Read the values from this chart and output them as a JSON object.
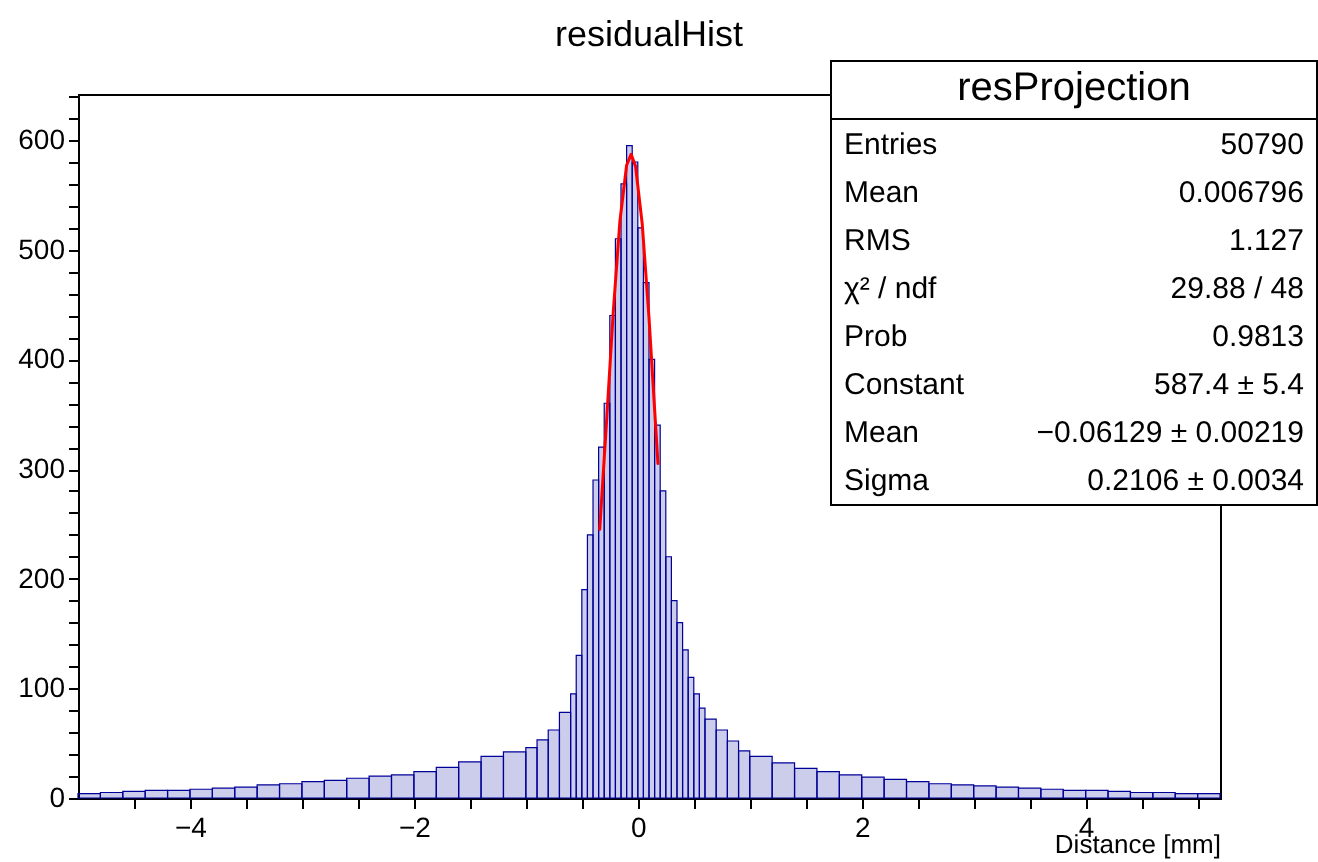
{
  "chart_data": {
    "type": "histogram",
    "title": "residualHist",
    "xlabel": "Distance [mm]",
    "color": "#000099",
    "bins": [
      -5,
      -4.8,
      -4.6,
      -4.4,
      -4.2,
      -4,
      -3.8,
      -3.6,
      -3.4,
      -3.2,
      -3,
      -2.8,
      -2.6,
      -2.4,
      -2.2,
      -2,
      -1.8,
      -1.6,
      -1.4,
      -1.2,
      -1,
      -0.9,
      -0.8,
      -0.7,
      -0.6,
      -0.55,
      -0.5,
      -0.45,
      -0.4,
      -0.35,
      -0.3,
      -0.25,
      -0.2,
      -0.15,
      -0.1,
      -0.05,
      0,
      0.05,
      0.1,
      0.15,
      0.2,
      0.25,
      0.3,
      0.35,
      0.4,
      0.45,
      0.5,
      0.55,
      0.6,
      0.7,
      0.8,
      0.9,
      1,
      1.2,
      1.4,
      1.6,
      1.8,
      2,
      2.2,
      2.4,
      2.6,
      2.8,
      3,
      3.2,
      3.4,
      3.6,
      3.8,
      4,
      4.2,
      4.4,
      4.6,
      4.8,
      5,
      5.2
    ],
    "values": [
      4,
      5,
      6,
      7,
      7,
      8,
      9,
      10,
      12,
      13,
      15,
      16,
      18,
      20,
      21,
      24,
      28,
      33,
      38,
      42,
      46,
      53,
      62,
      78,
      95,
      130,
      190,
      240,
      290,
      320,
      360,
      440,
      510,
      560,
      595,
      580,
      520,
      470,
      400,
      340,
      280,
      220,
      180,
      160,
      135,
      110,
      95,
      82,
      72,
      62,
      52,
      43,
      38,
      32,
      27,
      24,
      21,
      19,
      17,
      15,
      13,
      12,
      11,
      10,
      9,
      8,
      7,
      7,
      6,
      5,
      5,
      4,
      4
    ],
    "series": [
      {
        "type": "line",
        "color": "#ff0000",
        "x": [
          -0.34,
          -0.28,
          -0.22,
          -0.16,
          -0.1,
          -0.06,
          -0.02,
          0.04,
          0.1,
          0.16,
          0.18
        ],
        "values": [
          245,
          342,
          442,
          526,
          577,
          587,
          576,
          523,
          438,
          338,
          305
        ]
      }
    ],
    "xlim": [
      -5,
      5.2
    ],
    "ylim": [
      0,
      642
    ],
    "xticks": [
      {
        "value": -4.5,
        "label": null
      },
      {
        "value": -4,
        "label": "−4"
      },
      {
        "value": -3.5,
        "label": null
      },
      {
        "value": -3,
        "label": null
      },
      {
        "value": -2.5,
        "label": null
      },
      {
        "value": -2,
        "label": "−2"
      },
      {
        "value": -1.5,
        "label": null
      },
      {
        "value": -1,
        "label": null
      },
      {
        "value": -0.5,
        "label": null
      },
      0,
      {
        "value": 0.5,
        "label": null
      },
      {
        "value": 1,
        "label": null
      },
      {
        "value": 1.5,
        "label": null
      },
      2,
      {
        "value": 2.5,
        "label": null
      },
      {
        "value": 3,
        "label": null
      },
      {
        "value": 3.5,
        "label": null
      },
      4,
      {
        "value": 4.5,
        "label": null
      },
      {
        "value": 5,
        "label": null
      }
    ],
    "yticks": [
      0,
      {
        "value": 20,
        "label": null
      },
      {
        "value": 40,
        "label": null
      },
      {
        "value": 60,
        "label": null
      },
      {
        "value": 80,
        "label": null
      },
      100,
      {
        "value": 120,
        "label": null
      },
      {
        "value": 140,
        "label": null
      },
      {
        "value": 160,
        "label": null
      },
      {
        "value": 180,
        "label": null
      },
      200,
      {
        "value": 220,
        "label": null
      },
      {
        "value": 240,
        "label": null
      },
      {
        "value": 260,
        "label": null
      },
      {
        "value": 280,
        "label": null
      },
      300,
      {
        "value": 320,
        "label": null
      },
      {
        "value": 340,
        "label": null
      },
      {
        "value": 360,
        "label": null
      },
      {
        "value": 380,
        "label": null
      },
      400,
      {
        "value": 420,
        "label": null
      },
      {
        "value": 440,
        "label": null
      },
      {
        "value": 460,
        "label": null
      },
      {
        "value": 480,
        "label": null
      },
      500,
      {
        "value": 520,
        "label": null
      },
      {
        "value": 540,
        "label": null
      },
      {
        "value": 560,
        "label": null
      },
      {
        "value": 580,
        "label": null
      },
      600,
      {
        "value": 620,
        "label": null
      },
      {
        "value": 640,
        "label": null
      }
    ],
    "annotations": [
      "resProjection",
      "Entries",
      "50790",
      "Mean",
      "0.006796",
      "RMS",
      "1.127",
      "χ² / ndf",
      "29.88 / 48",
      "Prob",
      "0.9813",
      "Constant",
      "587.4 ± 5.4",
      "Mean",
      "−0.06129 ± 0.00219",
      "Sigma",
      "0.2106 ± 0.0034"
    ]
  }
}
